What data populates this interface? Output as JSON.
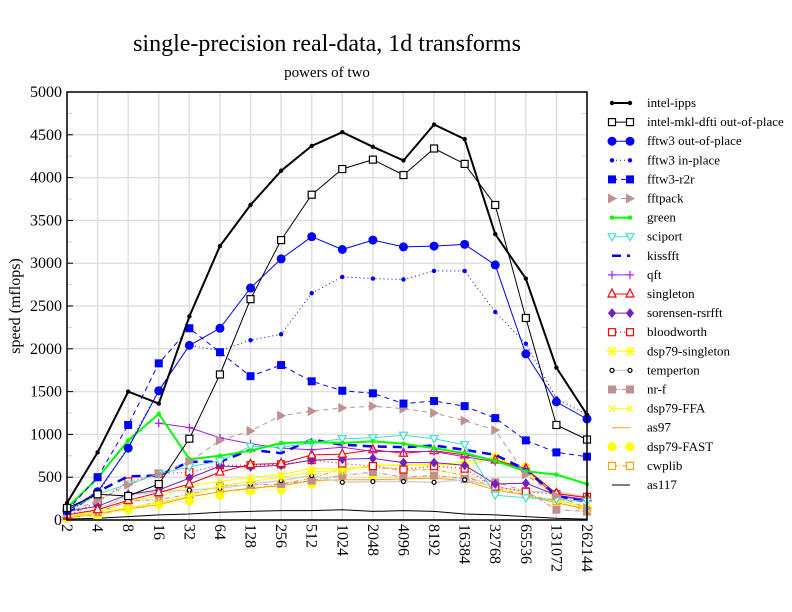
{
  "chart_data": {
    "type": "line",
    "title": "single-precision real-data, 1d transforms",
    "subtitle": "powers of two",
    "xlabel": "",
    "ylabel": "speed (mflops)",
    "ylim": [
      0,
      5000
    ],
    "yticks": [
      "0",
      "500",
      "1000",
      "1500",
      "2000",
      "2500",
      "3000",
      "3500",
      "4000",
      "4500",
      "5000"
    ],
    "yminor_step": 250,
    "grid": true,
    "legend_position": "right",
    "categories": [
      "2",
      "4",
      "8",
      "16",
      "32",
      "64",
      "128",
      "256",
      "512",
      "1024",
      "2048",
      "4096",
      "8192",
      "16384",
      "32768",
      "65536",
      "131072",
      "262144"
    ],
    "series": [
      {
        "name": "intel-ipps",
        "color": "#000000",
        "width": 2,
        "dash": "",
        "marker": "dot",
        "values": [
          200,
          790,
          1500,
          1360,
          2380,
          3200,
          3680,
          4080,
          4370,
          4530,
          4360,
          4200,
          4620,
          4450,
          3340,
          2820,
          1780,
          1230
        ]
      },
      {
        "name": "intel-mkl-dfti out-of-place",
        "color": "#000000",
        "width": 1,
        "dash": "",
        "marker": "open-square",
        "values": [
          140,
          300,
          280,
          420,
          950,
          1700,
          2580,
          3270,
          3800,
          4100,
          4210,
          4030,
          4340,
          4160,
          3680,
          2360,
          1110,
          940
        ]
      },
      {
        "name": "fftw3 out-of-place",
        "color": "#0000ff",
        "width": 1,
        "dash": "",
        "marker": "big-dot",
        "values": [
          110,
          330,
          840,
          1510,
          2040,
          2240,
          2710,
          3050,
          3310,
          3160,
          3270,
          3190,
          3200,
          3220,
          2980,
          1940,
          1380,
          1180
        ]
      },
      {
        "name": "fftw3 in-place",
        "color": "#0000ff",
        "width": 1,
        "dash": "1,3",
        "marker": "dot",
        "values": [
          90,
          300,
          860,
          1520,
          2040,
          1980,
          2100,
          2170,
          2650,
          2840,
          2820,
          2810,
          2910,
          2910,
          2430,
          2060,
          1420,
          1230
        ]
      },
      {
        "name": "fftw3-r2r",
        "color": "#0000ff",
        "width": 1,
        "dash": "5,4",
        "marker": "square",
        "values": [
          110,
          500,
          1110,
          1830,
          2240,
          1960,
          1680,
          1810,
          1620,
          1510,
          1480,
          1360,
          1390,
          1330,
          1190,
          930,
          790,
          740
        ]
      },
      {
        "name": "fftpack",
        "color": "#c09090",
        "width": 1,
        "dash": "5,4",
        "marker": "triangle-right",
        "values": [
          80,
          230,
          410,
          540,
          680,
          930,
          1040,
          1220,
          1270,
          1310,
          1330,
          1300,
          1250,
          1160,
          1050,
          530,
          280,
          140
        ]
      },
      {
        "name": "green",
        "color": "#00ff00",
        "width": 2,
        "dash": "",
        "marker": "dot",
        "values": [
          140,
          490,
          930,
          1240,
          710,
          750,
          810,
          900,
          910,
          900,
          920,
          890,
          840,
          780,
          690,
          570,
          530,
          420
        ]
      },
      {
        "name": "sciport",
        "color": "#40e0d0",
        "width": 1,
        "dash": "",
        "marker": "triangle-down",
        "values": [
          100,
          300,
          420,
          540,
          620,
          690,
          860,
          850,
          900,
          950,
          960,
          990,
          950,
          880,
          290,
          260,
          240,
          220
        ]
      },
      {
        "name": "kissfft",
        "color": "#0000ff",
        "width": 2.5,
        "dash": "9,6",
        "marker": "none",
        "values": [
          80,
          330,
          510,
          520,
          680,
          680,
          820,
          780,
          940,
          880,
          860,
          850,
          870,
          820,
          760,
          590,
          280,
          210
        ]
      },
      {
        "name": "qft",
        "color": "#a020f0",
        "width": 1,
        "dash": "",
        "marker": "plus",
        "values": [
          null,
          null,
          null,
          1130,
          1080,
          960,
          890,
          840,
          820,
          850,
          800,
          800,
          800,
          740,
          680,
          600,
          270,
          240
        ]
      },
      {
        "name": "singleton",
        "color": "#ff0000",
        "width": 1,
        "dash": "",
        "marker": "open-triangle",
        "values": [
          60,
          120,
          230,
          320,
          420,
          560,
          650,
          660,
          760,
          770,
          820,
          780,
          810,
          760,
          700,
          600,
          310,
          260
        ]
      },
      {
        "name": "sorensen-rsrfft",
        "color": "#7020c0",
        "width": 1,
        "dash": "",
        "marker": "diamond",
        "values": [
          100,
          160,
          300,
          350,
          490,
          630,
          620,
          640,
          700,
          710,
          720,
          670,
          670,
          640,
          420,
          430,
          290,
          240
        ]
      },
      {
        "name": "bloodworth",
        "color": "#ff0000",
        "width": 1,
        "dash": "1,3",
        "marker": "open-square",
        "values": [
          50,
          210,
          450,
          540,
          560,
          640,
          640,
          650,
          700,
          660,
          630,
          590,
          630,
          600,
          390,
          330,
          300,
          270
        ]
      },
      {
        "name": "dsp79-singleton",
        "color": "#ffff00",
        "width": 1,
        "dash": "",
        "marker": "star",
        "values": [
          40,
          110,
          140,
          200,
          280,
          400,
          450,
          500,
          560,
          580,
          640,
          640,
          640,
          680,
          730,
          570,
          250,
          130
        ]
      },
      {
        "name": "temperton",
        "color": "#d0d0d0",
        "width": 1.5,
        "dash": "",
        "marker": "small-open-circle",
        "values": [
          30,
          110,
          290,
          330,
          350,
          370,
          420,
          460,
          520,
          440,
          450,
          450,
          440,
          470,
          390,
          330,
          330,
          270
        ]
      },
      {
        "name": "nr-f",
        "color": "#c09090",
        "width": 1,
        "dash": "5,2,1,2",
        "marker": "square",
        "values": [
          120,
          90,
          220,
          240,
          300,
          400,
          410,
          420,
          460,
          520,
          560,
          500,
          520,
          480,
          440,
          340,
          120,
          100
        ]
      },
      {
        "name": "dsp79-FFA",
        "color": "#ffff00",
        "width": 1,
        "dash": "",
        "marker": "x",
        "values": [
          40,
          80,
          220,
          280,
          400,
          450,
          500,
          530,
          600,
          600,
          630,
          650,
          650,
          640,
          720,
          590,
          240,
          140
        ]
      },
      {
        "name": "as97",
        "color": "#ffa500",
        "width": 1,
        "dash": "",
        "marker": "none",
        "values": [
          20,
          80,
          130,
          180,
          270,
          330,
          370,
          400,
          460,
          470,
          470,
          480,
          490,
          460,
          350,
          290,
          200,
          130
        ]
      },
      {
        "name": "dsp79-FAST",
        "color": "#ffff00",
        "width": 1,
        "dash": "1,3",
        "marker": "big-dot",
        "values": [
          20,
          40,
          120,
          180,
          220,
          290,
          340,
          350,
          420,
          540,
          520,
          500,
          510,
          600,
          730,
          620,
          300,
          140
        ]
      },
      {
        "name": "cwplib",
        "color": "#ffa500",
        "width": 1,
        "dash": "5,2,1,2",
        "marker": "open-square",
        "values": [
          30,
          60,
          140,
          210,
          270,
          330,
          360,
          420,
          490,
          600,
          620,
          580,
          590,
          520,
          370,
          300,
          220,
          100
        ]
      },
      {
        "name": "as117",
        "color": "#000000",
        "width": 1,
        "dash": "",
        "marker": "none",
        "values": [
          10,
          20,
          40,
          60,
          70,
          90,
          100,
          110,
          110,
          120,
          100,
          110,
          100,
          70,
          60,
          40,
          20,
          10
        ]
      }
    ]
  }
}
